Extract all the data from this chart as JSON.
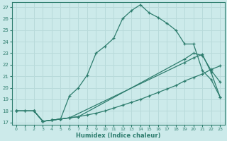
{
  "bg_color": "#cceaea",
  "line_color": "#2e7d6e",
  "grid_color": "#b8dada",
  "xlabel": "Humidex (Indice chaleur)",
  "xlim": [
    -0.5,
    23.5
  ],
  "ylim": [
    16.8,
    27.4
  ],
  "yticks": [
    17,
    18,
    19,
    20,
    21,
    22,
    23,
    24,
    25,
    26,
    27
  ],
  "xticks": [
    0,
    1,
    2,
    3,
    4,
    5,
    6,
    7,
    8,
    9,
    10,
    11,
    12,
    13,
    14,
    15,
    16,
    17,
    18,
    19,
    20,
    21,
    22,
    23
  ],
  "line1_x": [
    0,
    1,
    2,
    3,
    4,
    5,
    6,
    7,
    8,
    9,
    10,
    11,
    12,
    13,
    14,
    15,
    16,
    17,
    18,
    19,
    20,
    21,
    22,
    23
  ],
  "line1_y": [
    18.0,
    18.0,
    18.0,
    17.1,
    17.2,
    17.3,
    19.3,
    20.0,
    21.1,
    23.0,
    23.6,
    24.3,
    26.0,
    26.7,
    27.2,
    26.5,
    26.1,
    25.6,
    25.0,
    23.8,
    23.8,
    21.5,
    20.7,
    19.2
  ],
  "line2_x": [
    0,
    2,
    3,
    4,
    5,
    6,
    7,
    19,
    20,
    21,
    22,
    23
  ],
  "line2_y": [
    18.0,
    18.0,
    17.1,
    17.2,
    17.3,
    17.4,
    17.5,
    22.5,
    23.0,
    22.8,
    21.5,
    20.5
  ],
  "line3_x": [
    0,
    2,
    3,
    4,
    5,
    6,
    19,
    20,
    21,
    22,
    23
  ],
  "line3_y": [
    18.0,
    18.0,
    17.1,
    17.2,
    17.3,
    17.4,
    22.2,
    22.6,
    22.9,
    21.3,
    19.2
  ],
  "line4_x": [
    0,
    1,
    2,
    3,
    4,
    5,
    6,
    7,
    8,
    9,
    10,
    11,
    12,
    13,
    14,
    15,
    16,
    17,
    18,
    19,
    20,
    21,
    22,
    23
  ],
  "line4_y": [
    18.0,
    18.0,
    18.0,
    17.1,
    17.2,
    17.3,
    17.4,
    17.5,
    17.65,
    17.8,
    18.0,
    18.25,
    18.5,
    18.75,
    19.0,
    19.3,
    19.6,
    19.9,
    20.2,
    20.6,
    20.9,
    21.2,
    21.6,
    21.9
  ]
}
